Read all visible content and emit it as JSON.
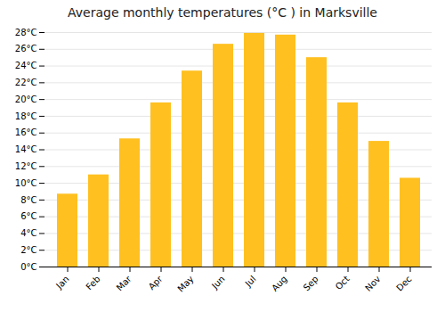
{
  "chart_data": {
    "type": "bar",
    "title": "Average monthly temperatures (°C ) in Marksville",
    "categories": [
      "Jan",
      "Feb",
      "Mar",
      "Apr",
      "May",
      "Jun",
      "Jul",
      "Aug",
      "Sep",
      "Oct",
      "Nov",
      "Dec"
    ],
    "values": [
      8.7,
      11.0,
      15.3,
      19.6,
      23.4,
      26.6,
      27.9,
      27.7,
      25.0,
      19.6,
      15.0,
      10.6
    ],
    "color": "#FFC020",
    "ylim": [
      0,
      28
    ],
    "yticks": [
      {
        "value": 0,
        "label": "0°C"
      },
      {
        "value": 2,
        "label": "2°C"
      },
      {
        "value": 4,
        "label": "4°C"
      },
      {
        "value": 6,
        "label": "6°C"
      },
      {
        "value": 8,
        "label": "8°C"
      },
      {
        "value": 10,
        "label": "10°C"
      },
      {
        "value": 12,
        "label": "12°C"
      },
      {
        "value": 14,
        "label": "14°C"
      },
      {
        "value": 16,
        "label": "16°C"
      },
      {
        "value": 18,
        "label": "18°C"
      },
      {
        "value": 20,
        "label": "20°C"
      },
      {
        "value": 22,
        "label": "22°C"
      },
      {
        "value": 24,
        "label": "24°C"
      },
      {
        "value": 26,
        "label": "26°C"
      },
      {
        "value": 28,
        "label": "28°C"
      }
    ],
    "grid": true
  }
}
